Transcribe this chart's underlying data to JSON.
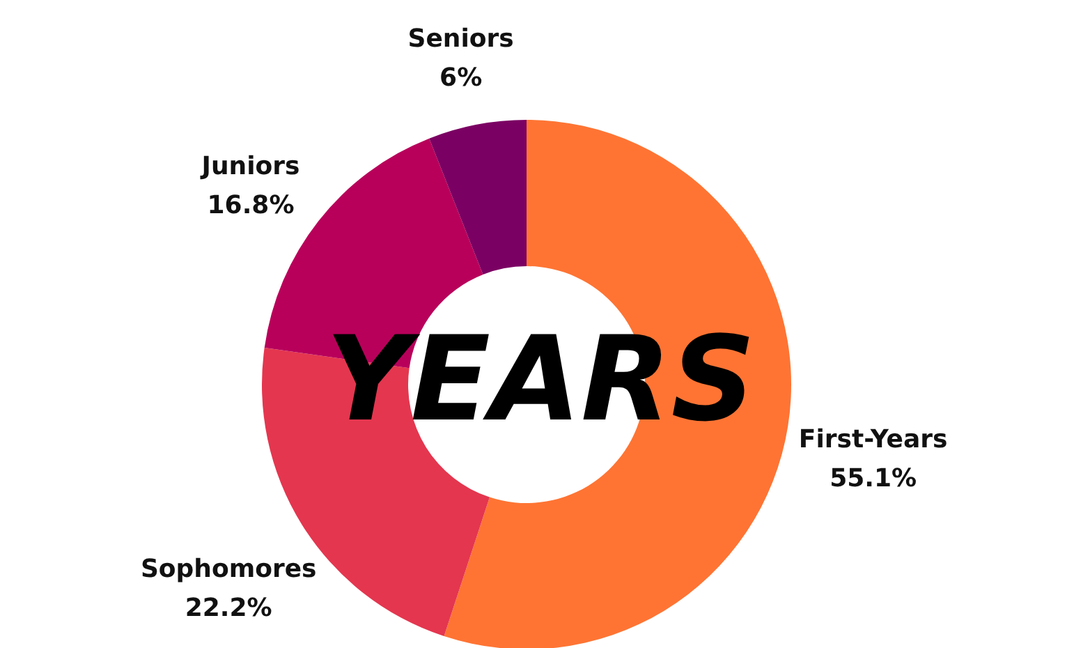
{
  "chart_data": {
    "type": "donut",
    "title": "YEARS",
    "categories": [
      "First-Years",
      "Sophomores",
      "Juniors",
      "Seniors"
    ],
    "values": [
      55.1,
      22.2,
      16.8,
      6
    ],
    "value_labels": [
      "55.1%",
      "22.2%",
      "16.8%",
      "6%"
    ],
    "colors": [
      "#ff7433",
      "#e4364f",
      "#b8005a",
      "#7b0063"
    ],
    "legend": false
  }
}
